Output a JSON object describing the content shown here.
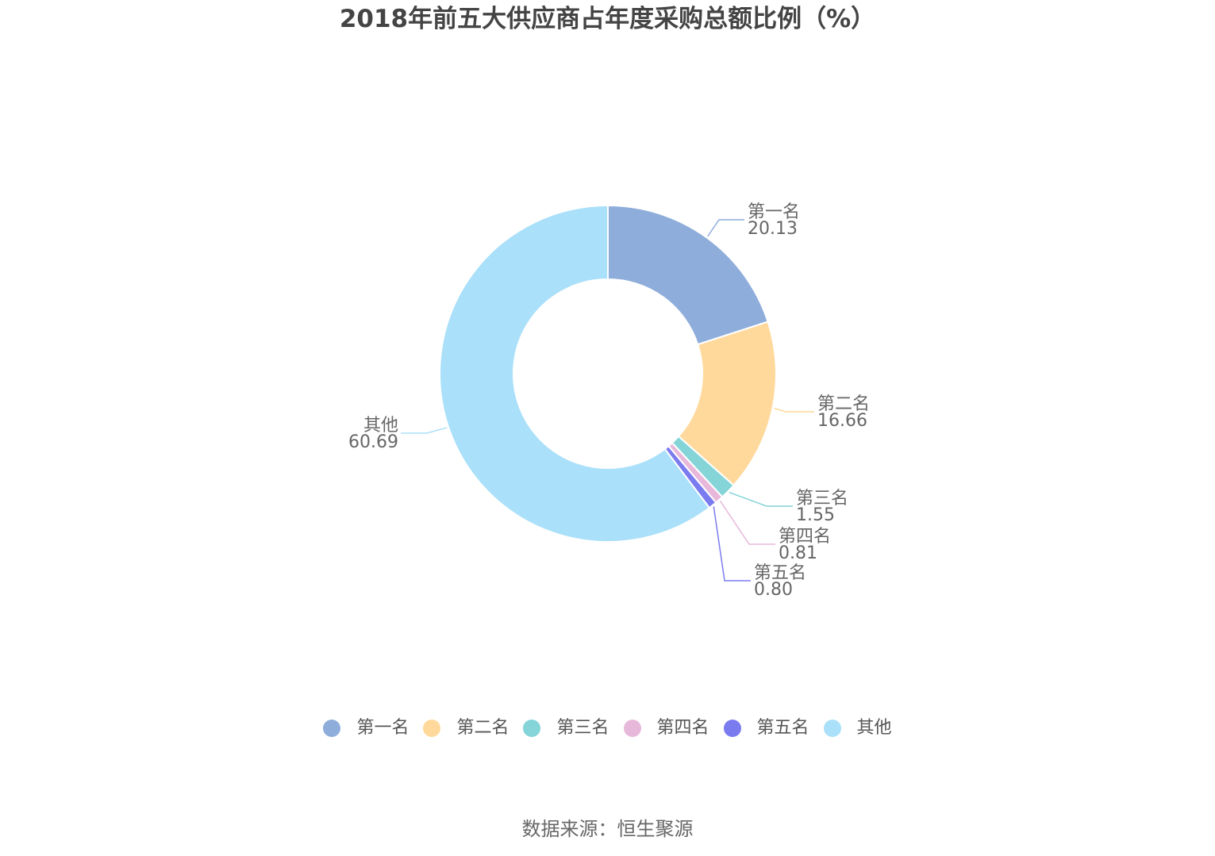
{
  "title": "2018年前五大供应商占年度采购总额比例（%）",
  "source": "数据来源：恒生聚源",
  "chart_data": {
    "type": "pie",
    "subtype": "donut",
    "title": "2018年前五大供应商占年度采购总额比例（%）",
    "categories": [
      "第一名",
      "第二名",
      "第三名",
      "第四名",
      "第五名",
      "其他"
    ],
    "values": [
      20.13,
      16.66,
      1.55,
      0.81,
      0.8,
      60.69
    ],
    "value_labels": [
      "20.13",
      "16.66",
      "1.55",
      "0.81",
      "0.80",
      "60.69"
    ],
    "colors": [
      "#8EADDB",
      "#FFD99C",
      "#84D4D8",
      "#E8B8DB",
      "#7B7BF0",
      "#AAE0F9"
    ],
    "legend_position": "bottom"
  },
  "legend": {
    "items": [
      {
        "label": "第一名",
        "color": "#8EADDB"
      },
      {
        "label": "第二名",
        "color": "#FFD99C"
      },
      {
        "label": "第三名",
        "color": "#84D4D8"
      },
      {
        "label": "第四名",
        "color": "#E8B8DB"
      },
      {
        "label": "第五名",
        "color": "#7B7BF0"
      },
      {
        "label": "其他",
        "color": "#AAE0F9"
      }
    ]
  }
}
